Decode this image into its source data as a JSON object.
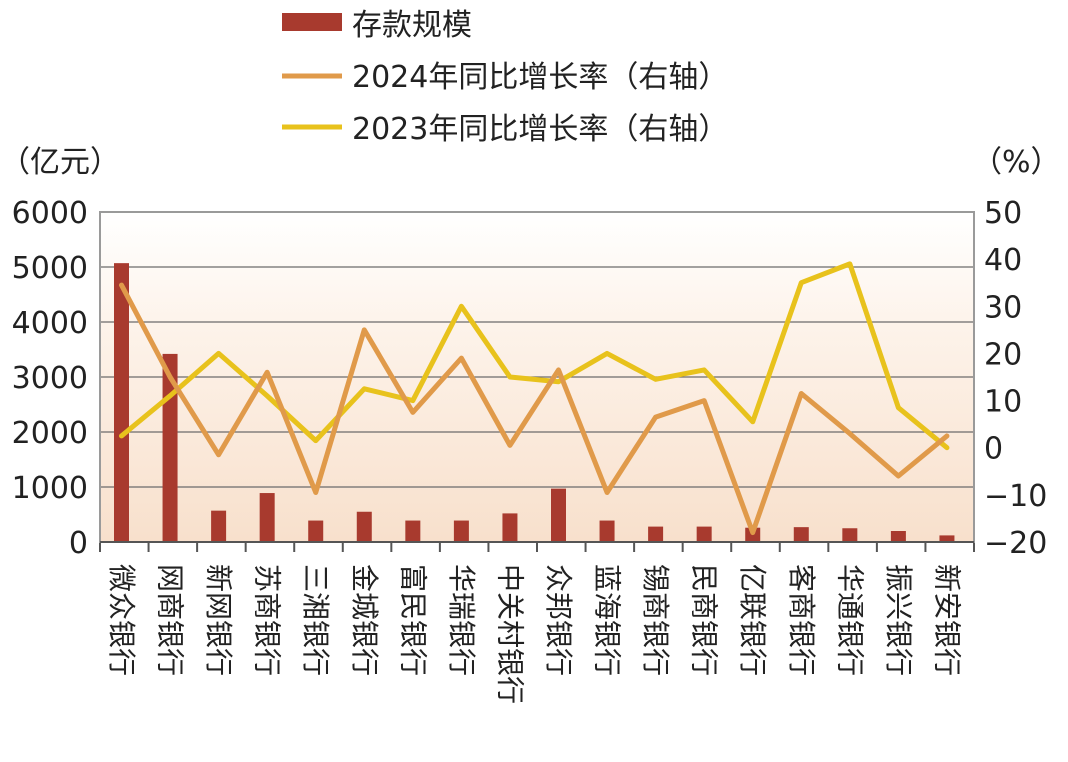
{
  "chart_data": {
    "type": "bar",
    "legend": {
      "placement": "top-center",
      "entries": [
        "存款规模",
        "2024年同比增长率（右轴）",
        "2023年同比增长率（右轴）"
      ]
    },
    "y_left_label": "（亿元）",
    "y_right_label": "（%）",
    "y_left_ticks": [
      "0",
      "1000",
      "2000",
      "3000",
      "4000",
      "5000",
      "6000"
    ],
    "y_right_ticks": [
      "−20",
      "−10",
      "0",
      "10",
      "20",
      "30",
      "40",
      "50"
    ],
    "y_left_range": [
      0,
      6000
    ],
    "y_right_range": [
      -20,
      50
    ],
    "grid": true,
    "categories": [
      "微众银行",
      "网商银行",
      "新网银行",
      "苏商银行",
      "三湘银行",
      "金城银行",
      "富民银行",
      "华瑞银行",
      "中关村银行",
      "众邦银行",
      "蓝海银行",
      "锡商银行",
      "民商银行",
      "亿联银行",
      "客商银行",
      "华通银行",
      "振兴银行",
      "新安银行"
    ],
    "series": [
      {
        "name": "存款规模",
        "kind": "bar",
        "axis": "left",
        "color": "#a83a2e",
        "values": [
          5070,
          3420,
          570,
          890,
          390,
          550,
          390,
          390,
          520,
          970,
          390,
          280,
          280,
          260,
          270,
          250,
          200,
          120
        ]
      },
      {
        "name": "2024年同比增长率（右轴）",
        "kind": "line",
        "axis": "right",
        "color": "#e09a4a",
        "values": [
          34.5,
          15,
          -1.5,
          16,
          -9.5,
          25,
          7.5,
          19,
          0.5,
          16.5,
          -9.5,
          6.5,
          10,
          -18,
          11.5,
          3,
          -6,
          2.5
        ]
      },
      {
        "name": "2023年同比增长率（右轴）",
        "kind": "line",
        "axis": "right",
        "color": "#e8c21c",
        "values": [
          2.5,
          11,
          20,
          11,
          1.5,
          12.5,
          10,
          30,
          15,
          14,
          20,
          14.5,
          16.5,
          5.5,
          35,
          39,
          8.5,
          0
        ]
      }
    ]
  }
}
